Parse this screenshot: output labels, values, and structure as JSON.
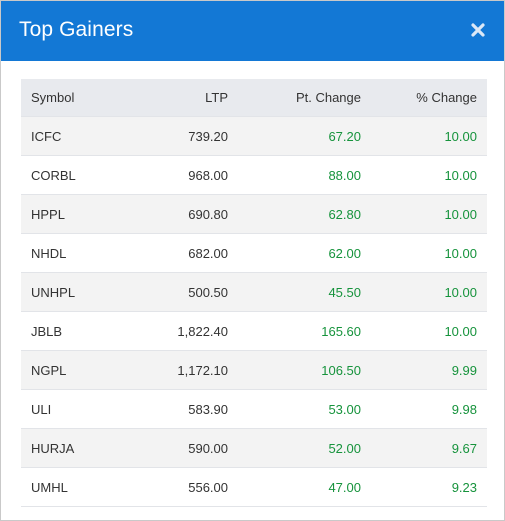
{
  "modal": {
    "title": "Top Gainers"
  },
  "colors": {
    "header_bg": "#1378d5",
    "gain": "#16933c"
  },
  "table": {
    "headers": {
      "symbol": "Symbol",
      "ltp": "LTP",
      "pt_change": "Pt. Change",
      "pct_change": "% Change"
    },
    "rows": [
      {
        "symbol": "ICFC",
        "ltp": "739.20",
        "pt_change": "67.20",
        "pct_change": "10.00"
      },
      {
        "symbol": "CORBL",
        "ltp": "968.00",
        "pt_change": "88.00",
        "pct_change": "10.00"
      },
      {
        "symbol": "HPPL",
        "ltp": "690.80",
        "pt_change": "62.80",
        "pct_change": "10.00"
      },
      {
        "symbol": "NHDL",
        "ltp": "682.00",
        "pt_change": "62.00",
        "pct_change": "10.00"
      },
      {
        "symbol": "UNHPL",
        "ltp": "500.50",
        "pt_change": "45.50",
        "pct_change": "10.00"
      },
      {
        "symbol": "JBLB",
        "ltp": "1,822.40",
        "pt_change": "165.60",
        "pct_change": "10.00"
      },
      {
        "symbol": "NGPL",
        "ltp": "1,172.10",
        "pt_change": "106.50",
        "pct_change": "9.99"
      },
      {
        "symbol": "ULI",
        "ltp": "583.90",
        "pt_change": "53.00",
        "pct_change": "9.98"
      },
      {
        "symbol": "HURJA",
        "ltp": "590.00",
        "pt_change": "52.00",
        "pct_change": "9.67"
      },
      {
        "symbol": "UMHL",
        "ltp": "556.00",
        "pt_change": "47.00",
        "pct_change": "9.23"
      }
    ]
  }
}
